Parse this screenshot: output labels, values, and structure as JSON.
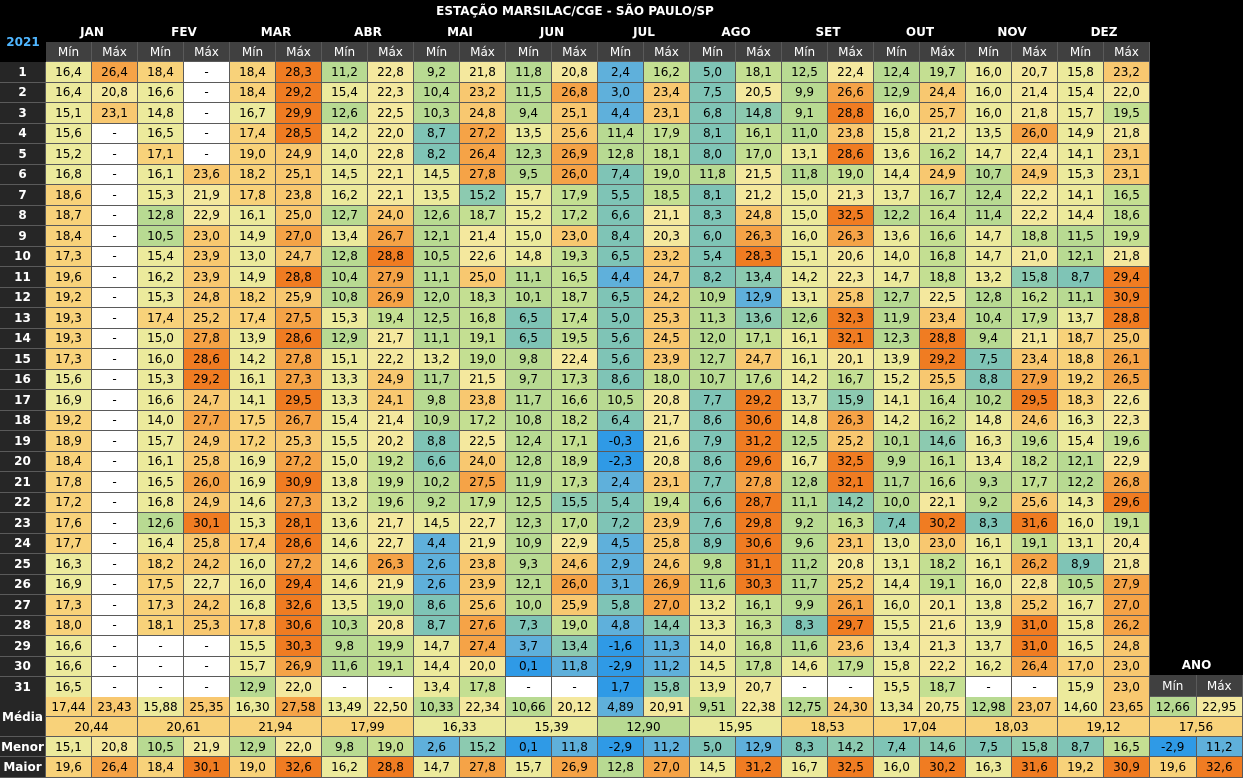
{
  "title": "ESTAÇÃO MARSILAC/CGE - SÃO PAULO/SP",
  "year": "2021",
  "min_label": "Mín",
  "max_label": "Máx",
  "ano_label": "ANO",
  "summary_labels": [
    "Média",
    "Menor",
    "Maior"
  ],
  "chart_data": {
    "type": "heatmap",
    "title": "ESTAÇÃO MARSILAC/CGE - SÃO PAULO/SP",
    "months": [
      "JAN",
      "FEV",
      "MAR",
      "ABR",
      "MAI",
      "JUN",
      "JUL",
      "AGO",
      "SET",
      "OUT",
      "NOV",
      "DEZ"
    ],
    "days": [
      "1",
      "2",
      "3",
      "4",
      "5",
      "6",
      "7",
      "8",
      "9",
      "10",
      "11",
      "12",
      "13",
      "14",
      "15",
      "16",
      "17",
      "18",
      "19",
      "20",
      "21",
      "22",
      "23",
      "24",
      "25",
      "26",
      "27",
      "28",
      "29",
      "30",
      "31"
    ],
    "min": [
      [
        "16,4",
        "16,4",
        "15,1",
        "15,6",
        "15,2",
        "16,8",
        "18,6",
        "18,7",
        "18,4",
        "17,3",
        "19,6",
        "19,2",
        "19,3",
        "19,3",
        "17,3",
        "15,6",
        "16,9",
        "19,2",
        "18,9",
        "18,4",
        "17,8",
        "17,2",
        "17,6",
        "17,7",
        "16,3",
        "16,9",
        "17,3",
        "18,0",
        "16,6",
        "16,6",
        "16,5"
      ],
      [
        "18,4",
        "16,6",
        "14,8",
        "16,5",
        "17,1",
        "16,1",
        "15,3",
        "12,8",
        "10,5",
        "15,4",
        "16,2",
        "15,3",
        "17,4",
        "15,0",
        "16,0",
        "15,3",
        "16,6",
        "14,0",
        "15,7",
        "16,1",
        "16,5",
        "16,8",
        "12,6",
        "16,4",
        "18,2",
        "17,5",
        "17,3",
        "18,1",
        "-",
        "-",
        "-"
      ],
      [
        "18,4",
        "18,4",
        "16,7",
        "17,4",
        "19,0",
        "18,2",
        "17,8",
        "16,1",
        "14,9",
        "13,0",
        "14,9",
        "18,2",
        "17,4",
        "13,9",
        "14,2",
        "16,1",
        "14,1",
        "17,5",
        "17,2",
        "16,9",
        "16,9",
        "14,6",
        "15,3",
        "17,4",
        "16,0",
        "16,0",
        "16,8",
        "17,8",
        "15,5",
        "15,7",
        "12,9"
      ],
      [
        "11,2",
        "15,4",
        "12,6",
        "14,2",
        "14,0",
        "14,5",
        "16,2",
        "12,7",
        "13,4",
        "12,8",
        "10,4",
        "10,8",
        "15,3",
        "12,9",
        "15,1",
        "13,3",
        "13,3",
        "15,4",
        "15,5",
        "15,0",
        "13,8",
        "13,2",
        "13,6",
        "14,6",
        "14,6",
        "14,6",
        "13,5",
        "10,3",
        "9,8",
        "11,6",
        "-"
      ],
      [
        "9,2",
        "10,4",
        "10,3",
        "8,7",
        "8,2",
        "14,5",
        "13,5",
        "12,6",
        "12,1",
        "10,5",
        "11,1",
        "12,0",
        "12,5",
        "11,1",
        "13,2",
        "11,7",
        "9,8",
        "10,9",
        "8,8",
        "6,6",
        "10,2",
        "9,2",
        "14,5",
        "4,4",
        "2,6",
        "2,6",
        "8,6",
        "8,7",
        "14,7",
        "14,4",
        "13,4"
      ],
      [
        "11,8",
        "11,5",
        "9,4",
        "13,5",
        "12,3",
        "9,5",
        "15,7",
        "15,2",
        "15,0",
        "14,8",
        "11,1",
        "10,1",
        "6,5",
        "6,5",
        "9,8",
        "9,7",
        "11,7",
        "10,8",
        "12,4",
        "12,8",
        "11,9",
        "12,5",
        "12,3",
        "10,9",
        "9,3",
        "12,1",
        "10,0",
        "7,3",
        "3,7",
        "0,1",
        "-"
      ],
      [
        "2,4",
        "3,0",
        "4,4",
        "11,4",
        "12,8",
        "7,4",
        "5,5",
        "6,6",
        "8,4",
        "6,5",
        "4,4",
        "6,5",
        "5,0",
        "5,6",
        "5,6",
        "8,6",
        "10,5",
        "6,4",
        "-0,3",
        "-2,3",
        "2,4",
        "5,4",
        "7,2",
        "4,5",
        "2,9",
        "3,1",
        "5,8",
        "4,8",
        "-1,6",
        "-2,9",
        "1,7"
      ],
      [
        "5,0",
        "7,5",
        "6,8",
        "8,1",
        "8,0",
        "11,8",
        "8,1",
        "8,3",
        "6,0",
        "5,4",
        "8,2",
        "10,9",
        "11,3",
        "12,0",
        "12,7",
        "10,7",
        "7,7",
        "8,6",
        "7,9",
        "8,6",
        "7,7",
        "6,6",
        "7,6",
        "8,9",
        "9,8",
        "11,6",
        "13,2",
        "13,3",
        "14,0",
        "14,5",
        "13,9"
      ],
      [
        "12,5",
        "9,9",
        "9,1",
        "11,0",
        "13,1",
        "11,8",
        "15,0",
        "15,0",
        "16,0",
        "15,1",
        "14,2",
        "13,1",
        "12,6",
        "16,1",
        "16,1",
        "14,2",
        "13,7",
        "14,8",
        "12,5",
        "16,7",
        "12,8",
        "11,1",
        "9,2",
        "9,6",
        "11,2",
        "11,7",
        "9,9",
        "8,3",
        "11,6",
        "14,6",
        "-"
      ],
      [
        "12,4",
        "12,9",
        "16,0",
        "15,8",
        "13,6",
        "14,4",
        "13,7",
        "12,2",
        "13,6",
        "14,0",
        "14,7",
        "12,7",
        "11,9",
        "12,3",
        "13,9",
        "15,2",
        "14,1",
        "14,2",
        "10,1",
        "9,9",
        "11,7",
        "10,0",
        "7,4",
        "13,0",
        "13,1",
        "14,4",
        "16,0",
        "15,5",
        "13,4",
        "15,8",
        "15,5"
      ],
      [
        "16,0",
        "16,0",
        "16,0",
        "13,5",
        "14,7",
        "10,7",
        "12,4",
        "11,4",
        "14,7",
        "14,7",
        "13,2",
        "12,8",
        "10,4",
        "9,4",
        "7,5",
        "8,8",
        "10,2",
        "14,8",
        "16,3",
        "13,4",
        "9,3",
        "9,2",
        "8,3",
        "16,1",
        "16,1",
        "16,0",
        "13,8",
        "13,9",
        "13,7",
        "16,2",
        "-"
      ],
      [
        "15,8",
        "15,4",
        "15,7",
        "14,9",
        "14,1",
        "15,3",
        "14,1",
        "14,4",
        "11,5",
        "12,1",
        "8,7",
        "11,1",
        "13,7",
        "18,7",
        "18,8",
        "19,2",
        "18,3",
        "16,3",
        "15,4",
        "12,1",
        "12,2",
        "14,3",
        "16,0",
        "13,1",
        "8,9",
        "10,5",
        "16,7",
        "15,8",
        "16,5",
        "17,0",
        "15,9"
      ]
    ],
    "max": [
      [
        "26,4",
        "20,8",
        "23,1",
        "-",
        "-",
        "-",
        "-",
        "-",
        "-",
        "-",
        "-",
        "-",
        "-",
        "-",
        "-",
        "-",
        "-",
        "-",
        "-",
        "-",
        "-",
        "-",
        "-",
        "-",
        "-",
        "-",
        "-",
        "-",
        "-",
        "-",
        "-"
      ],
      [
        "-",
        "-",
        "-",
        "-",
        "-",
        "23,6",
        "21,9",
        "22,9",
        "23,0",
        "23,9",
        "23,9",
        "24,8",
        "25,2",
        "27,8",
        "28,6",
        "29,2",
        "24,7",
        "27,7",
        "24,9",
        "25,8",
        "26,0",
        "24,9",
        "30,1",
        "25,8",
        "24,2",
        "22,7",
        "24,2",
        "25,3",
        "-",
        "-",
        "-"
      ],
      [
        "28,3",
        "29,2",
        "29,9",
        "28,5",
        "24,9",
        "25,1",
        "23,8",
        "25,0",
        "27,0",
        "24,7",
        "28,8",
        "25,9",
        "27,5",
        "28,6",
        "27,8",
        "27,3",
        "29,5",
        "26,7",
        "25,3",
        "27,2",
        "30,9",
        "27,3",
        "28,1",
        "28,6",
        "27,2",
        "29,4",
        "32,6",
        "30,6",
        "30,3",
        "26,9",
        "22,0"
      ],
      [
        "22,8",
        "22,3",
        "22,5",
        "22,0",
        "22,8",
        "22,1",
        "22,1",
        "24,0",
        "26,7",
        "28,8",
        "27,9",
        "26,9",
        "19,4",
        "21,7",
        "22,2",
        "24,9",
        "24,1",
        "21,4",
        "20,2",
        "19,2",
        "19,9",
        "19,6",
        "21,7",
        "22,7",
        "26,3",
        "21,9",
        "19,0",
        "20,8",
        "19,9",
        "19,1",
        "-"
      ],
      [
        "21,8",
        "23,2",
        "24,8",
        "27,2",
        "26,4",
        "27,8",
        "15,2",
        "18,7",
        "21,4",
        "22,6",
        "25,0",
        "18,3",
        "16,8",
        "19,1",
        "19,0",
        "21,5",
        "23,8",
        "17,2",
        "22,5",
        "24,0",
        "27,5",
        "17,9",
        "22,7",
        "21,9",
        "23,8",
        "23,9",
        "25,6",
        "27,6",
        "27,4",
        "20,0",
        "17,8"
      ],
      [
        "20,8",
        "26,8",
        "25,1",
        "25,6",
        "26,9",
        "26,0",
        "17,9",
        "17,2",
        "23,0",
        "19,3",
        "16,5",
        "18,7",
        "17,4",
        "19,5",
        "22,4",
        "17,3",
        "16,6",
        "18,2",
        "17,1",
        "18,9",
        "17,3",
        "15,5",
        "17,0",
        "22,9",
        "24,6",
        "26,0",
        "25,9",
        "19,0",
        "13,4",
        "11,8",
        "-"
      ],
      [
        "16,2",
        "23,4",
        "23,1",
        "17,9",
        "18,1",
        "19,0",
        "18,5",
        "21,1",
        "20,3",
        "23,2",
        "24,7",
        "24,2",
        "25,3",
        "24,5",
        "23,9",
        "18,0",
        "20,8",
        "21,7",
        "21,6",
        "20,8",
        "23,1",
        "19,4",
        "23,9",
        "25,8",
        "24,6",
        "26,9",
        "27,0",
        "14,4",
        "11,3",
        "11,2",
        "15,8"
      ],
      [
        "18,1",
        "20,5",
        "14,8",
        "16,1",
        "17,0",
        "21,5",
        "21,2",
        "24,8",
        "26,3",
        "28,3",
        "13,4",
        "12,9",
        "13,6",
        "17,1",
        "24,7",
        "17,6",
        "29,2",
        "30,6",
        "31,2",
        "29,6",
        "27,8",
        "28,7",
        "29,8",
        "30,6",
        "31,1",
        "30,3",
        "16,1",
        "16,3",
        "16,8",
        "17,8",
        "20,7"
      ],
      [
        "22,4",
        "26,6",
        "28,8",
        "23,8",
        "28,6",
        "19,0",
        "21,3",
        "32,5",
        "26,3",
        "20,6",
        "22,3",
        "25,8",
        "32,3",
        "32,1",
        "20,1",
        "16,7",
        "15,9",
        "26,3",
        "25,2",
        "32,5",
        "32,1",
        "14,2",
        "16,3",
        "23,1",
        "20,8",
        "25,2",
        "26,1",
        "29,7",
        "23,6",
        "17,9",
        "-"
      ],
      [
        "19,7",
        "24,4",
        "25,7",
        "21,2",
        "16,2",
        "24,9",
        "16,7",
        "16,4",
        "16,6",
        "16,8",
        "18,8",
        "22,5",
        "23,4",
        "28,8",
        "29,2",
        "25,5",
        "16,4",
        "16,2",
        "14,6",
        "16,1",
        "16,6",
        "22,1",
        "30,2",
        "23,0",
        "18,2",
        "19,1",
        "20,1",
        "21,6",
        "21,3",
        "22,2",
        "18,7"
      ],
      [
        "20,7",
        "21,4",
        "21,8",
        "26,0",
        "22,4",
        "24,9",
        "22,2",
        "22,2",
        "18,8",
        "21,0",
        "15,8",
        "16,2",
        "17,9",
        "21,1",
        "23,4",
        "27,9",
        "29,5",
        "24,6",
        "19,6",
        "18,2",
        "17,7",
        "25,6",
        "31,6",
        "19,1",
        "26,2",
        "22,8",
        "25,2",
        "31,0",
        "31,0",
        "26,4",
        "-"
      ],
      [
        "23,2",
        "22,0",
        "19,5",
        "21,8",
        "23,1",
        "23,1",
        "16,5",
        "18,6",
        "19,9",
        "21,8",
        "29,4",
        "30,9",
        "28,8",
        "25,0",
        "26,1",
        "26,5",
        "22,6",
        "22,3",
        "19,6",
        "22,9",
        "26,8",
        "29,6",
        "19,1",
        "20,4",
        "21,8",
        "27,9",
        "27,0",
        "26,2",
        "24,8",
        "23,0",
        "23,0"
      ]
    ],
    "media_min": [
      "17,44",
      "15,88",
      "16,30",
      "13,49",
      "10,33",
      "10,66",
      "4,89",
      "9,51",
      "12,75",
      "13,34",
      "12,98",
      "14,60"
    ],
    "media_max": [
      "23,43",
      "25,35",
      "27,58",
      "22,50",
      "22,34",
      "20,12",
      "20,91",
      "22,38",
      "24,30",
      "20,75",
      "23,07",
      "23,65"
    ],
    "media": [
      "20,44",
      "20,61",
      "21,94",
      "17,99",
      "16,33",
      "15,39",
      "12,90",
      "15,95",
      "18,53",
      "17,04",
      "18,03",
      "19,12"
    ],
    "menor_min": [
      "15,1",
      "10,5",
      "12,9",
      "9,8",
      "2,6",
      "0,1",
      "-2,9",
      "5,0",
      "8,3",
      "7,4",
      "7,5",
      "8,7"
    ],
    "menor_max": [
      "20,8",
      "21,9",
      "22,0",
      "19,0",
      "15,2",
      "11,8",
      "11,2",
      "12,9",
      "14,2",
      "14,6",
      "15,8",
      "16,5"
    ],
    "maior_min": [
      "19,6",
      "18,4",
      "19,0",
      "16,2",
      "14,7",
      "15,7",
      "12,8",
      "14,5",
      "16,7",
      "16,0",
      "16,3",
      "19,2"
    ],
    "maior_max": [
      "26,4",
      "30,1",
      "32,6",
      "28,8",
      "27,8",
      "26,9",
      "27,0",
      "31,2",
      "32,5",
      "30,2",
      "31,6",
      "30,9"
    ],
    "ano": {
      "media_min": "12,66",
      "media_max": "22,95",
      "media": "17,56",
      "menor_min": "-2,9",
      "menor_max": "11,2",
      "maior_min": "19,6",
      "maior_max": "32,6"
    },
    "colors": {
      "min_scale": [
        "#1e90e0",
        "#5aaad6",
        "#7cc1b4",
        "#b9d98f",
        "#f2e79a",
        "#f7c46a"
      ],
      "max_scale": [
        "#7cc1b4",
        "#b9d98f",
        "#f5e89a",
        "#f7c46a",
        "#f39c3e",
        "#ee7a20"
      ],
      "blank": "#ffffff"
    }
  }
}
